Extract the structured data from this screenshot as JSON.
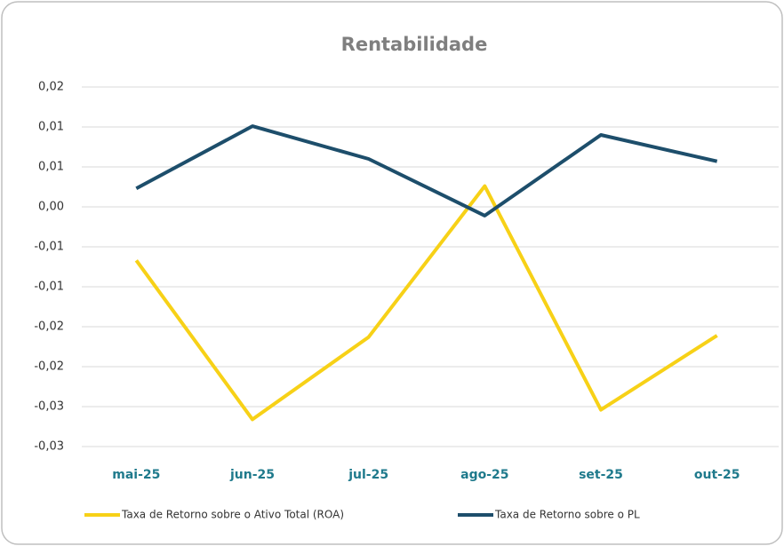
{
  "chart_data": {
    "type": "line",
    "title": "Rentabilidade",
    "categories": [
      "mai-25",
      "jun-25",
      "jul-25",
      "ago-25",
      "set-25",
      "out-25"
    ],
    "series": [
      {
        "name": "Taxa de Retorno sobre o Ativo Total (ROA)",
        "color": "#f7d117",
        "values": [
          -0.0067,
          -0.0266,
          -0.0163,
          0.0026,
          -0.0254,
          -0.0161
        ]
      },
      {
        "name": "Taxa de Retorno sobre o PL",
        "color": "#1d4e6b",
        "values": [
          0.0023,
          0.0101,
          0.006,
          -0.0011,
          0.009,
          0.0057
        ]
      }
    ],
    "ylim": [
      -0.03,
      0.015
    ],
    "yticks": [
      {
        "value": -0.03,
        "label": "-0,03"
      },
      {
        "value": -0.025,
        "label": "-0,03"
      },
      {
        "value": -0.02,
        "label": "-0,02"
      },
      {
        "value": -0.015,
        "label": "-0,02"
      },
      {
        "value": -0.01,
        "label": "-0,01"
      },
      {
        "value": -0.005,
        "label": "-0,01"
      },
      {
        "value": 0,
        "label": "0,00"
      },
      {
        "value": 0.005,
        "label": "0,01"
      },
      {
        "value": 0.01,
        "label": "0,01"
      },
      {
        "value": 0.015,
        "label": "0,02"
      }
    ],
    "grid": true,
    "legend": "bottom"
  }
}
